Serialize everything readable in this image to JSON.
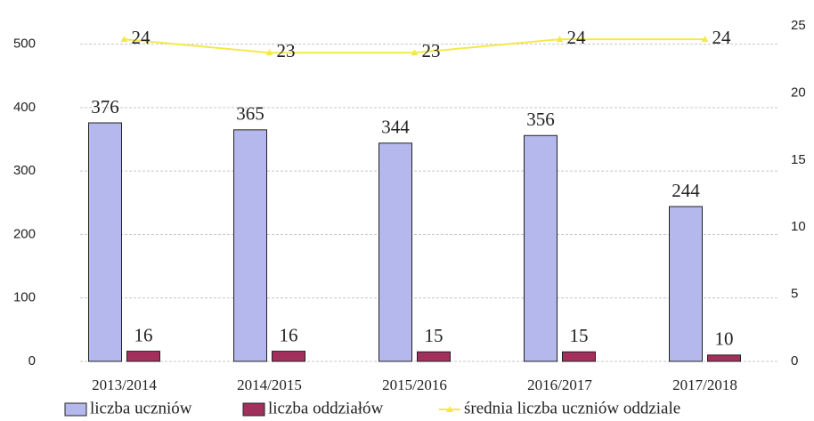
{
  "chart_data": {
    "type": "bar",
    "categories": [
      "2013/2014",
      "2014/2015",
      "2015/2016",
      "2016/2017",
      "2017/2018"
    ],
    "series": [
      {
        "name": "liczba uczniów",
        "color": "#b4b8ec",
        "values": [
          376,
          365,
          344,
          356,
          244
        ]
      },
      {
        "name": "liczba oddziałów",
        "color": "#a3305c",
        "values": [
          16,
          16,
          15,
          15,
          10
        ]
      },
      {
        "name": "średnia liczba uczniów oddziale",
        "color": "#f3e94a",
        "type": "line",
        "axis": "y2",
        "values": [
          24,
          23,
          23,
          24,
          24
        ]
      }
    ],
    "ylim": [
      0,
      550
    ],
    "yticks": [
      0,
      100,
      200,
      300,
      400,
      500
    ],
    "y2lim": [
      0,
      26
    ],
    "y2ticks": [
      0,
      5,
      10,
      15,
      20,
      25
    ],
    "grid": true,
    "legend": "bottom"
  }
}
